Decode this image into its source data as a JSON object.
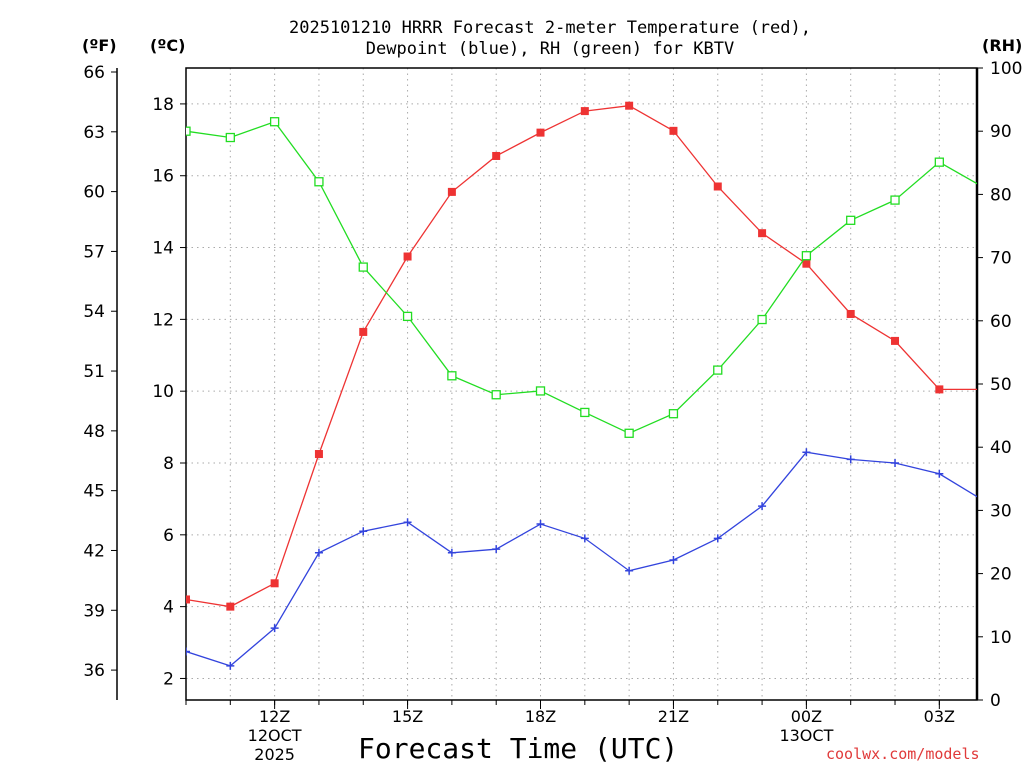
{
  "header": {
    "title_line1": "2025101210 HRRR Forecast 2-meter Temperature (red),",
    "title_line2": "Dewpoint (blue), RH (green) for KBTV"
  },
  "units": {
    "fahrenheit": "(ºF)",
    "celsius": "(ºC)",
    "rh": "(RH)"
  },
  "footer": {
    "xlabel": "Forecast Time (UTC)",
    "credit": "coolwx.com/models"
  },
  "chart_data": {
    "type": "line",
    "x_hours_utc": [
      10,
      11,
      12,
      13,
      14,
      15,
      16,
      17,
      18,
      19,
      20,
      21,
      22,
      23,
      24,
      25,
      26,
      27,
      28
    ],
    "xlim": [
      10,
      27.85
    ],
    "x_ticks": [
      {
        "hour": 12,
        "lines": [
          "12Z",
          "12OCT",
          "2025"
        ]
      },
      {
        "hour": 15,
        "lines": [
          "15Z"
        ]
      },
      {
        "hour": 18,
        "lines": [
          "18Z"
        ]
      },
      {
        "hour": 21,
        "lines": [
          "21Z"
        ]
      },
      {
        "hour": 24,
        "lines": [
          "00Z",
          "13OCT"
        ]
      },
      {
        "hour": 27,
        "lines": [
          "03Z"
        ]
      }
    ],
    "celsius_axis": {
      "lim": [
        1.4,
        19.0
      ],
      "ticks": [
        "2",
        "4",
        "6",
        "8",
        "10",
        "12",
        "14",
        "16",
        "18"
      ]
    },
    "fahrenheit_axis": {
      "lim": [
        34.5,
        66.2
      ],
      "ticks": [
        "36",
        "39",
        "42",
        "45",
        "48",
        "51",
        "54",
        "57",
        "60",
        "63",
        "66"
      ]
    },
    "rh_axis": {
      "lim": [
        0,
        100
      ],
      "ticks": [
        "0",
        "10",
        "20",
        "30",
        "40",
        "50",
        "60",
        "70",
        "80",
        "90",
        "100"
      ]
    },
    "grid": true,
    "series": [
      {
        "name": "Temperature",
        "color": "#ee3333",
        "marker": "filled-square",
        "axis": "celsius",
        "values": [
          4.2,
          4.0,
          4.65,
          8.25,
          11.65,
          13.75,
          15.55,
          16.55,
          17.2,
          17.8,
          17.95,
          17.25,
          15.7,
          14.4,
          13.55,
          12.15,
          11.4,
          10.05,
          10.05
        ]
      },
      {
        "name": "Dewpoint",
        "color": "#3344dd",
        "marker": "plus",
        "axis": "celsius",
        "values": [
          2.75,
          2.35,
          3.4,
          5.5,
          6.1,
          6.35,
          5.5,
          5.6,
          6.3,
          5.9,
          5.0,
          5.3,
          5.9,
          6.8,
          8.3,
          8.1,
          8.0,
          7.7,
          6.95
        ]
      },
      {
        "name": "RH",
        "color": "#22dd22",
        "marker": "open-square",
        "axis": "rh",
        "values": [
          90,
          89,
          91.5,
          82,
          68.5,
          60.7,
          51.3,
          48.3,
          48.9,
          45.5,
          42.2,
          45.3,
          52.2,
          60.2,
          70.3,
          75.9,
          79.1,
          85.1,
          81.1
        ]
      }
    ]
  }
}
